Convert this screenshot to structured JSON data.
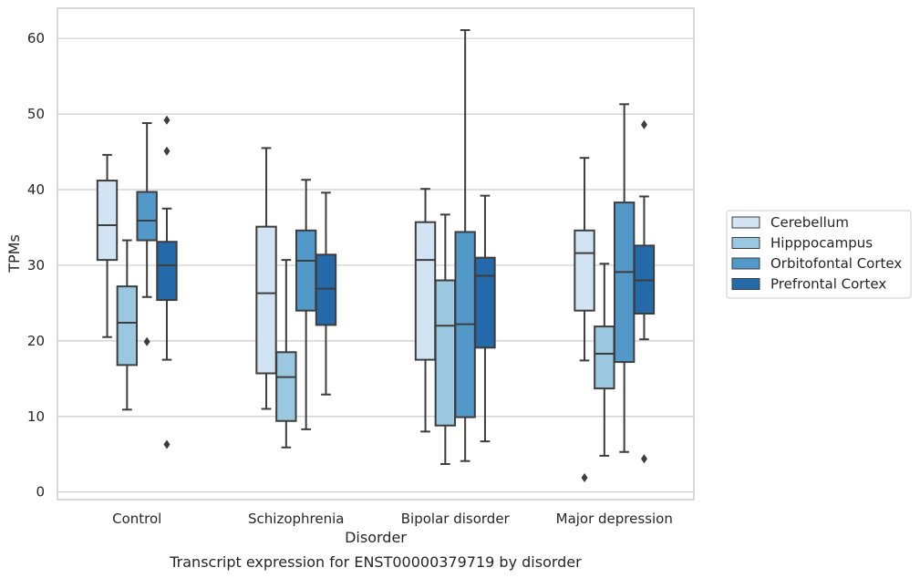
{
  "chart_data": {
    "type": "box",
    "title": "",
    "caption": "Transcript expression for ENST00000379719 by disorder",
    "xlabel": "Disorder",
    "ylabel": "TPMs",
    "ylim": [
      -1,
      64
    ],
    "yticks": [
      0,
      10,
      20,
      30,
      40,
      50,
      60
    ],
    "grid": "horizontal",
    "legend_position": "right",
    "categories": [
      "Control",
      "Schizophrenia",
      "Bipolar disorder",
      "Major depression"
    ],
    "series": [
      {
        "name": "Cerebellum",
        "color": "#d2e3f3",
        "boxes": [
          {
            "whisker_low": 20.5,
            "q1": 30.7,
            "median": 35.3,
            "q3": 41.2,
            "whisker_high": 44.6,
            "outliers": []
          },
          {
            "whisker_low": 11.0,
            "q1": 15.7,
            "median": 26.3,
            "q3": 35.1,
            "whisker_high": 45.5,
            "outliers": []
          },
          {
            "whisker_low": 8.0,
            "q1": 17.5,
            "median": 30.7,
            "q3": 35.7,
            "whisker_high": 40.1,
            "outliers": []
          },
          {
            "whisker_low": 17.4,
            "q1": 24.0,
            "median": 31.6,
            "q3": 34.6,
            "whisker_high": 44.2,
            "outliers": [
              1.9
            ]
          }
        ]
      },
      {
        "name": "Hipppocampus",
        "color": "#9ac8e0",
        "boxes": [
          {
            "whisker_low": 10.9,
            "q1": 16.8,
            "median": 22.4,
            "q3": 27.2,
            "whisker_high": 33.3,
            "outliers": []
          },
          {
            "whisker_low": 5.9,
            "q1": 9.4,
            "median": 15.2,
            "q3": 18.5,
            "whisker_high": 30.7,
            "outliers": []
          },
          {
            "whisker_low": 3.7,
            "q1": 8.8,
            "median": 22.0,
            "q3": 28.0,
            "whisker_high": 36.7,
            "outliers": []
          },
          {
            "whisker_low": 4.8,
            "q1": 13.7,
            "median": 18.3,
            "q3": 21.9,
            "whisker_high": 30.2,
            "outliers": []
          }
        ]
      },
      {
        "name": "Orbitofontal Cortex",
        "color": "#5299c9",
        "boxes": [
          {
            "whisker_low": 25.8,
            "q1": 33.3,
            "median": 35.9,
            "q3": 39.7,
            "whisker_high": 48.8,
            "outliers": [
              19.9
            ]
          },
          {
            "whisker_low": 8.3,
            "q1": 24.0,
            "median": 30.6,
            "q3": 34.6,
            "whisker_high": 41.3,
            "outliers": []
          },
          {
            "whisker_low": 4.1,
            "q1": 9.9,
            "median": 22.2,
            "q3": 34.4,
            "whisker_high": 61.1,
            "outliers": []
          },
          {
            "whisker_low": 5.3,
            "q1": 17.2,
            "median": 29.1,
            "q3": 38.3,
            "whisker_high": 51.3,
            "outliers": []
          }
        ]
      },
      {
        "name": "Prefrontal Cortex",
        "color": "#2469a9",
        "boxes": [
          {
            "whisker_low": 17.5,
            "q1": 25.4,
            "median": 30.0,
            "q3": 33.1,
            "whisker_high": 37.5,
            "outliers": [
              49.2,
              45.1,
              6.3
            ]
          },
          {
            "whisker_low": 12.9,
            "q1": 22.1,
            "median": 26.9,
            "q3": 31.4,
            "whisker_high": 39.6,
            "outliers": []
          },
          {
            "whisker_low": 6.7,
            "q1": 19.1,
            "median": 28.6,
            "q3": 31.0,
            "whisker_high": 39.2,
            "outliers": []
          },
          {
            "whisker_low": 20.2,
            "q1": 23.6,
            "median": 28.0,
            "q3": 32.6,
            "whisker_high": 39.1,
            "outliers": [
              48.6,
              4.4
            ]
          }
        ]
      }
    ]
  }
}
